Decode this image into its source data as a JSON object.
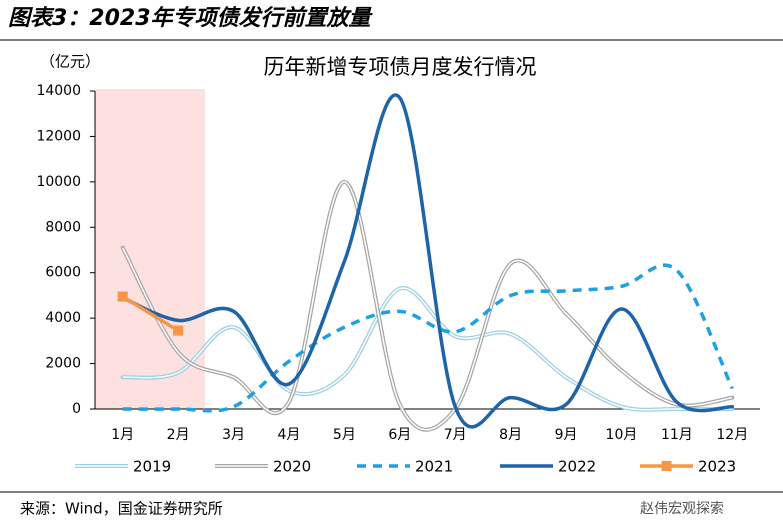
{
  "chart_data": {
    "type": "line",
    "figure_title": "图表3：2023年专项债发行前置放量",
    "title": "历年新增专项债月度发行情况",
    "y_label": "（亿元）",
    "source": "来源：Wind，国金证券研究所",
    "watermark": "赵伟宏观探索",
    "categories": [
      "1月",
      "2月",
      "3月",
      "4月",
      "5月",
      "6月",
      "7月",
      "8月",
      "9月",
      "10月",
      "11月",
      "12月"
    ],
    "ylim": [
      0,
      14000
    ],
    "yticks": [
      0,
      2000,
      4000,
      6000,
      8000,
      10000,
      12000,
      14000
    ],
    "series": [
      {
        "name": "2019",
        "color": "#9dcfe0",
        "line_style": "double",
        "values": [
          1400,
          1600,
          3600,
          800,
          1500,
          5300,
          3200,
          3300,
          1400,
          100,
          0,
          0
        ]
      },
      {
        "name": "2020",
        "color": "#a6a6a6",
        "line_style": "double",
        "values": [
          7100,
          2500,
          1400,
          300,
          10000,
          200,
          0,
          6400,
          4200,
          1700,
          200,
          500
        ]
      },
      {
        "name": "2021",
        "color": "#1fa0e0",
        "line_style": "dashed",
        "values": [
          0,
          0,
          100,
          2100,
          3600,
          4300,
          3400,
          5000,
          5200,
          5400,
          6100,
          900
        ]
      },
      {
        "name": "2022",
        "color": "#1e64a8",
        "line_style": "solid",
        "values": [
          4900,
          3900,
          4300,
          1100,
          6500,
          13700,
          100,
          500,
          200,
          4400,
          300,
          100
        ]
      },
      {
        "name": "2023",
        "color": "#f79646",
        "line_style": "solid",
        "marker": "square",
        "values": [
          4950,
          3450,
          null,
          null,
          null,
          null,
          null,
          null,
          null,
          null,
          null,
          null
        ]
      }
    ]
  }
}
